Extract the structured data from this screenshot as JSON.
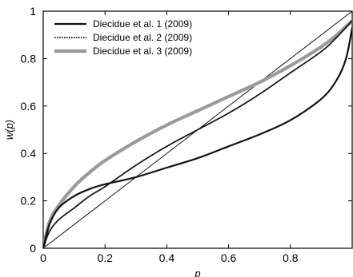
{
  "chart_data": {
    "type": "line",
    "xlabel": "p",
    "ylabel": "w(p)",
    "xlim": [
      0,
      1
    ],
    "ylim": [
      0,
      1
    ],
    "x_ticks": [
      "0",
      "0.2",
      "0.4",
      "0.6",
      "0.8"
    ],
    "y_ticks": [
      "0",
      "0.2",
      "0.4",
      "0.6",
      "0.8",
      "1"
    ],
    "legend_position": "top-left",
    "grid": false,
    "series": [
      {
        "name": "Diecidue et al. 1 (2009)",
        "style": "solid",
        "color": "#111111",
        "x": [
          0,
          0.02,
          0.05,
          0.1,
          0.15,
          0.2,
          0.3,
          0.4,
          0.5,
          0.6,
          0.7,
          0.8,
          0.9,
          0.95,
          0.98,
          1.0
        ],
        "y": [
          0,
          0.1,
          0.17,
          0.22,
          0.25,
          0.27,
          0.3,
          0.34,
          0.38,
          0.43,
          0.48,
          0.54,
          0.63,
          0.71,
          0.8,
          0.93
        ]
      },
      {
        "name": "Diecidue et al. 2 (2009)",
        "style": "dotted",
        "color": "#111111",
        "x": [
          0,
          0.02,
          0.05,
          0.1,
          0.15,
          0.2,
          0.3,
          0.4,
          0.5,
          0.6,
          0.7,
          0.8,
          0.9,
          0.95,
          1.0
        ],
        "y": [
          0,
          0.07,
          0.12,
          0.17,
          0.22,
          0.26,
          0.35,
          0.43,
          0.5,
          0.57,
          0.65,
          0.74,
          0.83,
          0.89,
          0.96
        ]
      },
      {
        "name": "Diecidue et al. 3 (2009)",
        "style": "thick-grey",
        "color": "#9a9a9a",
        "x": [
          0,
          0.02,
          0.05,
          0.1,
          0.15,
          0.2,
          0.3,
          0.4,
          0.5,
          0.6,
          0.7,
          0.8,
          0.9,
          0.95,
          1.0
        ],
        "y": [
          0,
          0.11,
          0.18,
          0.26,
          0.32,
          0.37,
          0.45,
          0.52,
          0.58,
          0.64,
          0.7,
          0.77,
          0.85,
          0.9,
          0.96
        ]
      },
      {
        "style": "thin-diagonal",
        "color": "#111111",
        "x": [
          0,
          1
        ],
        "y": [
          0,
          1
        ]
      }
    ]
  }
}
